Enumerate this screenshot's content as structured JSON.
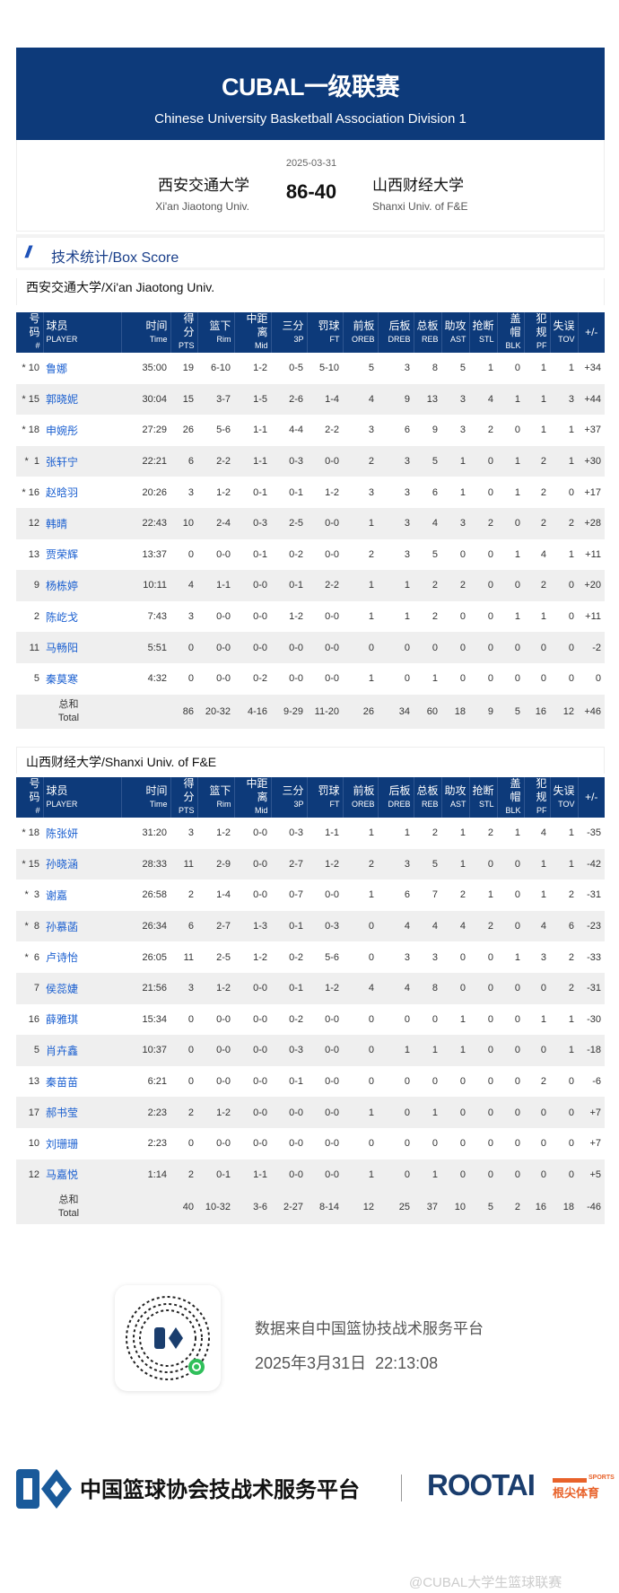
{
  "header": {
    "title": "CUBAL一级联赛",
    "subtitle": "Chinese University Basketball Association Division 1"
  },
  "match": {
    "date": "2025-03-31",
    "score": "86-40",
    "home_cn": "西安交通大学",
    "home_en": "Xi'an Jiaotong Univ.",
    "away_cn": "山西财经大学",
    "away_en": "Shanxi Univ. of F&E"
  },
  "section": {
    "title": "技术统计/Box Score"
  },
  "columns": [
    [
      "号码",
      "#"
    ],
    [
      "球员",
      "PLAYER"
    ],
    [
      "时间",
      "Time"
    ],
    [
      "得分",
      "PTS"
    ],
    [
      "篮下",
      "Rim"
    ],
    [
      "中距离",
      "Mid"
    ],
    [
      "三分",
      "3P"
    ],
    [
      "罚球",
      "FT"
    ],
    [
      "前板",
      "OREB"
    ],
    [
      "后板",
      "DREB"
    ],
    [
      "总板",
      "REB"
    ],
    [
      "助攻",
      "AST"
    ],
    [
      "抢断",
      "STL"
    ],
    [
      "盖帽",
      "BLK"
    ],
    [
      "犯规",
      "PF"
    ],
    [
      "失误",
      "TOV"
    ],
    [
      "+/-",
      ""
    ]
  ],
  "total_label": [
    "总和",
    "Total"
  ],
  "teams": [
    {
      "title": "西安交通大学/Xi'an Jiaotong Univ.",
      "rows": [
        [
          "* 10",
          "鲁娜",
          "35:00",
          "19",
          "6-10",
          "1-2",
          "0-5",
          "5-10",
          "5",
          "3",
          "8",
          "5",
          "1",
          "0",
          "1",
          "1",
          "+34"
        ],
        [
          "* 15",
          "郭晓妮",
          "30:04",
          "15",
          "3-7",
          "1-5",
          "2-6",
          "1-4",
          "4",
          "9",
          "13",
          "3",
          "4",
          "1",
          "1",
          "3",
          "+44"
        ],
        [
          "* 18",
          "申婉彤",
          "27:29",
          "26",
          "5-6",
          "1-1",
          "4-4",
          "2-2",
          "3",
          "6",
          "9",
          "3",
          "2",
          "0",
          "1",
          "1",
          "+37"
        ],
        [
          "*  1",
          "张轩宁",
          "22:21",
          "6",
          "2-2",
          "1-1",
          "0-3",
          "0-0",
          "2",
          "3",
          "5",
          "1",
          "0",
          "1",
          "2",
          "1",
          "+30"
        ],
        [
          "* 16",
          "赵晗羽",
          "20:26",
          "3",
          "1-2",
          "0-1",
          "0-1",
          "1-2",
          "3",
          "3",
          "6",
          "1",
          "0",
          "1",
          "2",
          "0",
          "+17"
        ],
        [
          "12",
          "韩晴",
          "22:43",
          "10",
          "2-4",
          "0-3",
          "2-5",
          "0-0",
          "1",
          "3",
          "4",
          "3",
          "2",
          "0",
          "2",
          "2",
          "+28"
        ],
        [
          "13",
          "贾荣辉",
          "13:37",
          "0",
          "0-0",
          "0-1",
          "0-2",
          "0-0",
          "2",
          "3",
          "5",
          "0",
          "0",
          "1",
          "4",
          "1",
          "+11"
        ],
        [
          "9",
          "杨栋婷",
          "10:11",
          "4",
          "1-1",
          "0-0",
          "0-1",
          "2-2",
          "1",
          "1",
          "2",
          "2",
          "0",
          "0",
          "2",
          "0",
          "+20"
        ],
        [
          "2",
          "陈屹戈",
          "7:43",
          "3",
          "0-0",
          "0-0",
          "1-2",
          "0-0",
          "1",
          "1",
          "2",
          "0",
          "0",
          "1",
          "1",
          "0",
          "+11"
        ],
        [
          "11",
          "马畅阳",
          "5:51",
          "0",
          "0-0",
          "0-0",
          "0-0",
          "0-0",
          "0",
          "0",
          "0",
          "0",
          "0",
          "0",
          "0",
          "0",
          "-2"
        ],
        [
          "5",
          "秦莫寒",
          "4:32",
          "0",
          "0-0",
          "0-2",
          "0-0",
          "0-0",
          "1",
          "0",
          "1",
          "0",
          "0",
          "0",
          "0",
          "0",
          "0"
        ]
      ],
      "total": [
        "86",
        "20-32",
        "4-16",
        "9-29",
        "11-20",
        "26",
        "34",
        "60",
        "18",
        "9",
        "5",
        "16",
        "12",
        "+46"
      ]
    },
    {
      "title": "山西财经大学/Shanxi Univ. of F&E",
      "rows": [
        [
          "* 18",
          "陈张妍",
          "31:20",
          "3",
          "1-2",
          "0-0",
          "0-3",
          "1-1",
          "1",
          "1",
          "2",
          "1",
          "2",
          "1",
          "4",
          "1",
          "-35"
        ],
        [
          "* 15",
          "孙晓涵",
          "28:33",
          "11",
          "2-9",
          "0-0",
          "2-7",
          "1-2",
          "2",
          "3",
          "5",
          "1",
          "0",
          "0",
          "1",
          "1",
          "-42"
        ],
        [
          "*  3",
          "谢嘉",
          "26:58",
          "2",
          "1-4",
          "0-0",
          "0-7",
          "0-0",
          "1",
          "6",
          "7",
          "2",
          "1",
          "0",
          "1",
          "2",
          "-31"
        ],
        [
          "*  8",
          "孙慕菡",
          "26:34",
          "6",
          "2-7",
          "1-3",
          "0-1",
          "0-3",
          "0",
          "4",
          "4",
          "4",
          "2",
          "0",
          "4",
          "6",
          "-23"
        ],
        [
          "*  6",
          "卢诗怡",
          "26:05",
          "11",
          "2-5",
          "1-2",
          "0-2",
          "5-6",
          "0",
          "3",
          "3",
          "0",
          "0",
          "1",
          "3",
          "2",
          "-33"
        ],
        [
          "7",
          "侯蕊婕",
          "21:56",
          "3",
          "1-2",
          "0-0",
          "0-1",
          "1-2",
          "4",
          "4",
          "8",
          "0",
          "0",
          "0",
          "0",
          "2",
          "-31"
        ],
        [
          "16",
          "薛雅琪",
          "15:34",
          "0",
          "0-0",
          "0-0",
          "0-2",
          "0-0",
          "0",
          "0",
          "0",
          "1",
          "0",
          "0",
          "1",
          "1",
          "-30"
        ],
        [
          "5",
          "肖卉鑫",
          "10:37",
          "0",
          "0-0",
          "0-0",
          "0-3",
          "0-0",
          "0",
          "1",
          "1",
          "1",
          "0",
          "0",
          "0",
          "1",
          "-18"
        ],
        [
          "13",
          "秦苗苗",
          "6:21",
          "0",
          "0-0",
          "0-0",
          "0-1",
          "0-0",
          "0",
          "0",
          "0",
          "0",
          "0",
          "0",
          "2",
          "0",
          "-6"
        ],
        [
          "17",
          "郝书莹",
          "2:23",
          "2",
          "1-2",
          "0-0",
          "0-0",
          "0-0",
          "1",
          "0",
          "1",
          "0",
          "0",
          "0",
          "0",
          "0",
          "+7"
        ],
        [
          "10",
          "刘珊珊",
          "2:23",
          "0",
          "0-0",
          "0-0",
          "0-0",
          "0-0",
          "0",
          "0",
          "0",
          "0",
          "0",
          "0",
          "0",
          "0",
          "+7"
        ],
        [
          "12",
          "马嘉悦",
          "1:14",
          "2",
          "0-1",
          "1-1",
          "0-0",
          "0-0",
          "1",
          "0",
          "1",
          "0",
          "0",
          "0",
          "0",
          "0",
          "+5"
        ]
      ],
      "total": [
        "40",
        "10-32",
        "3-6",
        "2-27",
        "8-14",
        "12",
        "25",
        "37",
        "10",
        "5",
        "2",
        "16",
        "18",
        "-46"
      ]
    }
  ],
  "footer": {
    "source": "数据来自中国篮协技战术服务平台",
    "timestamp": "2025年3月31日  22:13:08",
    "platform": "中国篮球协会技战术服务平台",
    "brand": "ROOTAI",
    "brand_sports": "SPORTS",
    "brand_cn": "根尖体育",
    "watermark": "@CUBAL大学生篮球联赛"
  },
  "colors": {
    "header_blue": "#0d3a7a",
    "link_blue": "#1a5fd0",
    "brand_orange": "#e8622a"
  }
}
